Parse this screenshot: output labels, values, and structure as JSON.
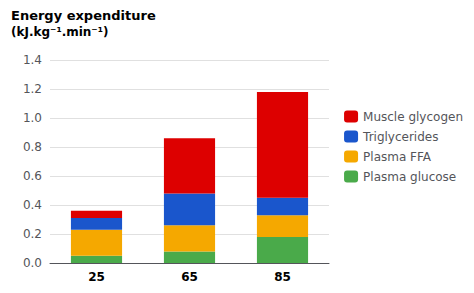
{
  "chart_data": {
    "type": "bar",
    "title": "Energy expenditure",
    "subtitle": "(kJ.kg⁻¹.min⁻¹)",
    "categories": [
      "25",
      "65",
      "85"
    ],
    "series": [
      {
        "name": "Plasma glucose",
        "color": "#4aaa4a",
        "values": [
          0.05,
          0.08,
          0.18
        ]
      },
      {
        "name": "Plasma FFA",
        "color": "#f5a800",
        "values": [
          0.18,
          0.18,
          0.15
        ]
      },
      {
        "name": "Triglycerides",
        "color": "#1a56cc",
        "values": [
          0.08,
          0.22,
          0.12
        ]
      },
      {
        "name": "Muscle glycogen",
        "color": "#dd0000",
        "values": [
          0.05,
          0.38,
          0.73
        ]
      }
    ],
    "stacked": true,
    "ylim": [
      0,
      1.4
    ],
    "yticks": [
      {
        "value": 0,
        "label": "0.0"
      },
      0.2,
      0.4,
      0.6,
      0.8,
      {
        "value": 1,
        "label": "1.0"
      },
      1.2,
      1.4
    ],
    "grid": true,
    "legend": "right"
  }
}
